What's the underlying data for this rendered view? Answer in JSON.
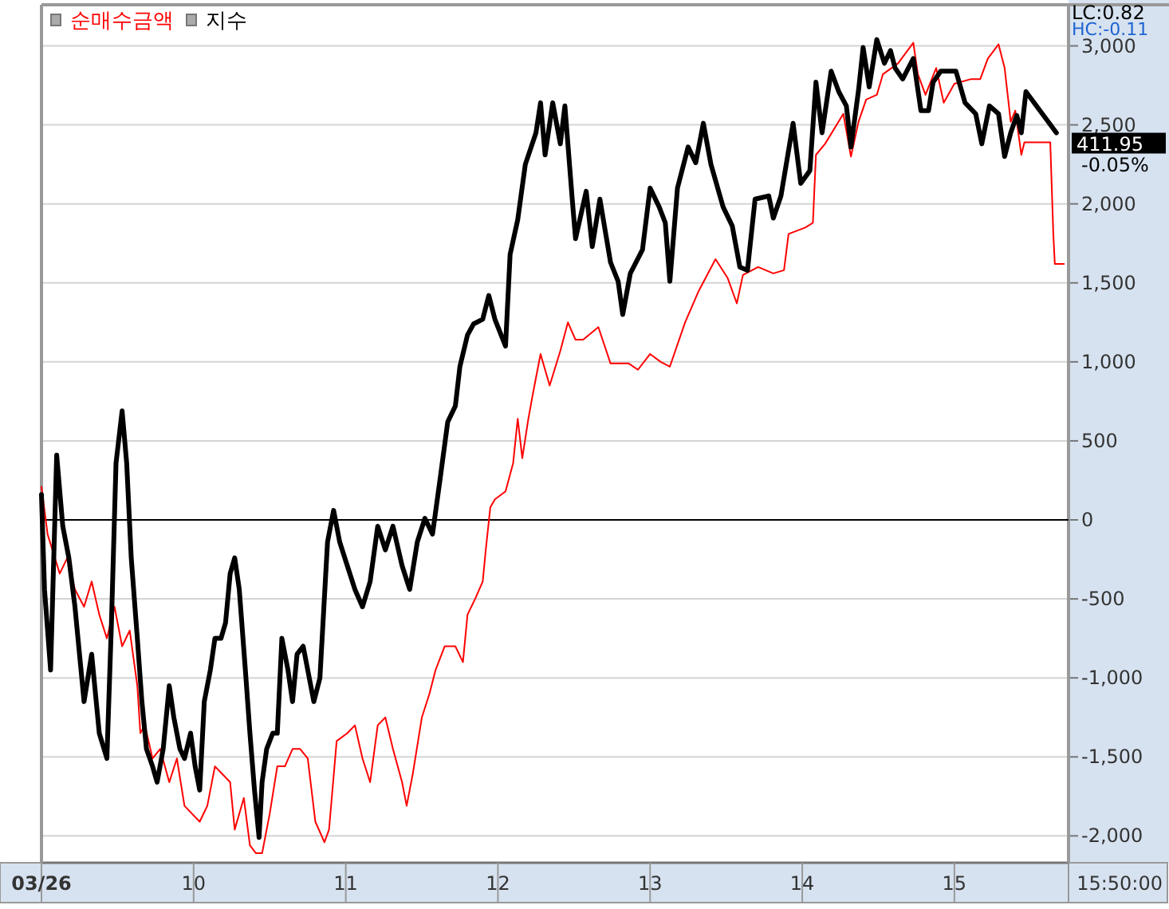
{
  "chart_data": {
    "type": "line",
    "xlim": [
      9,
      15.75
    ],
    "xticks": [
      {
        "value": 9,
        "label": "03/26"
      },
      10,
      11,
      12,
      13,
      14,
      15
    ],
    "ylim": [
      -2170,
      3260
    ],
    "yticks": [
      {
        "value": -2000,
        "label": "-2,000"
      },
      {
        "value": -1500,
        "label": "-1,500"
      },
      {
        "value": -1000,
        "label": "-1,000"
      },
      {
        "value": -500,
        "label": "-500"
      },
      0,
      500,
      {
        "value": 1000,
        "label": "1,000"
      },
      {
        "value": 1500,
        "label": "1,500"
      },
      {
        "value": 2000,
        "label": "2,000"
      },
      {
        "value": 2500,
        "label": "2,500"
      },
      {
        "value": 3000,
        "label": "3,000"
      }
    ],
    "grid": "y",
    "legend": "top left",
    "ref_lines": [
      {
        "axis": "y",
        "value": 0,
        "color": "#000000"
      }
    ],
    "series": [
      {
        "name": "순매수금액",
        "color": "#ff0000",
        "x": [
          9.0,
          9.04,
          9.12,
          9.17,
          9.22,
          9.28,
          9.33,
          9.38,
          9.43,
          9.48,
          9.53,
          9.58,
          9.63,
          9.65,
          9.68,
          9.73,
          9.78,
          9.84,
          9.89,
          9.94,
          9.99,
          10.04,
          10.09,
          10.14,
          10.19,
          10.24,
          10.27,
          10.33,
          10.37,
          10.41,
          10.45,
          10.5,
          10.55,
          10.6,
          10.65,
          10.7,
          10.75,
          10.8,
          10.86,
          10.89,
          10.94,
          11.01,
          11.06,
          11.11,
          11.16,
          11.21,
          11.26,
          11.31,
          11.37,
          11.4,
          11.44,
          11.5,
          11.55,
          11.59,
          11.65,
          11.72,
          11.77,
          11.8,
          11.85,
          11.9,
          11.92,
          11.95,
          11.98,
          12.05,
          12.1,
          12.13,
          12.16,
          12.2,
          12.23,
          12.28,
          12.34,
          12.41,
          12.46,
          12.51,
          12.56,
          12.66,
          12.74,
          12.86,
          12.92,
          13.0,
          13.07,
          13.13,
          13.23,
          13.32,
          13.43,
          13.51,
          13.57,
          13.61,
          13.71,
          13.81,
          13.88,
          13.91,
          14.02,
          14.07,
          14.09,
          14.15,
          14.27,
          14.32,
          14.37,
          14.42,
          14.49,
          14.53,
          14.63,
          14.73,
          14.76,
          14.81,
          14.88,
          14.93,
          15.0,
          15.11,
          15.17,
          15.22,
          15.29,
          15.33,
          15.37,
          15.4,
          15.44,
          15.46,
          15.63,
          15.65,
          15.66,
          15.72
        ],
        "values": [
          210,
          -90,
          -340,
          -240,
          -440,
          -550,
          -390,
          -600,
          -750,
          -550,
          -800,
          -700,
          -1050,
          -1350,
          -1300,
          -1510,
          -1450,
          -1660,
          -1510,
          -1810,
          -1860,
          -1910,
          -1810,
          -1560,
          -1610,
          -1660,
          -1960,
          -1760,
          -2060,
          -2110,
          -2110,
          -1860,
          -1560,
          -1560,
          -1450,
          -1450,
          -1510,
          -1910,
          -2040,
          -1960,
          -1400,
          -1350,
          -1300,
          -1510,
          -1660,
          -1300,
          -1250,
          -1450,
          -1660,
          -1810,
          -1610,
          -1250,
          -1100,
          -950,
          -800,
          -800,
          -900,
          -600,
          -500,
          -390,
          -190,
          80,
          130,
          180,
          360,
          640,
          390,
          640,
          800,
          1050,
          850,
          1070,
          1250,
          1140,
          1140,
          1220,
          990,
          990,
          950,
          1050,
          1000,
          970,
          1250,
          1450,
          1650,
          1530,
          1370,
          1550,
          1600,
          1560,
          1580,
          1810,
          1850,
          1880,
          2310,
          2380,
          2570,
          2300,
          2520,
          2660,
          2690,
          2820,
          2890,
          3020,
          2820,
          2690,
          2860,
          2640,
          2760,
          2790,
          2790,
          2920,
          3010,
          2860,
          2520,
          2590,
          2310,
          2390,
          2390,
          1810,
          1620,
          1620
        ]
      },
      {
        "name": "지수",
        "color": "#000000",
        "x": [
          9.0,
          9.02,
          9.06,
          9.1,
          9.14,
          9.18,
          9.22,
          9.28,
          9.33,
          9.38,
          9.43,
          9.46,
          9.49,
          9.53,
          9.56,
          9.59,
          9.63,
          9.66,
          9.69,
          9.73,
          9.76,
          9.8,
          9.84,
          9.87,
          9.91,
          9.94,
          9.98,
          10.01,
          10.04,
          10.07,
          10.11,
          10.14,
          10.18,
          10.21,
          10.24,
          10.27,
          10.3,
          10.34,
          10.37,
          10.4,
          10.43,
          10.45,
          10.48,
          10.52,
          10.55,
          10.58,
          10.62,
          10.65,
          10.68,
          10.72,
          10.75,
          10.79,
          10.83,
          10.88,
          10.92,
          10.96,
          11.01,
          11.06,
          11.11,
          11.16,
          11.21,
          11.26,
          11.31,
          11.37,
          11.42,
          11.47,
          11.52,
          11.57,
          11.62,
          11.67,
          11.72,
          11.75,
          11.8,
          11.84,
          11.9,
          11.94,
          11.98,
          12.05,
          12.08,
          12.13,
          12.18,
          12.25,
          12.28,
          12.31,
          12.36,
          12.41,
          12.44,
          12.49,
          12.51,
          12.58,
          12.62,
          12.67,
          12.74,
          12.79,
          12.82,
          12.87,
          12.95,
          13.0,
          13.06,
          13.1,
          13.13,
          13.18,
          13.25,
          13.3,
          13.35,
          13.4,
          13.48,
          13.54,
          13.59,
          13.64,
          13.69,
          13.78,
          13.81,
          13.86,
          13.94,
          13.99,
          14.05,
          14.09,
          14.13,
          14.19,
          14.24,
          14.29,
          14.32,
          14.37,
          14.4,
          14.44,
          14.49,
          14.54,
          14.58,
          14.61,
          14.66,
          14.73,
          14.78,
          14.83,
          14.86,
          14.91,
          15.01,
          15.07,
          15.14,
          15.18,
          15.23,
          15.29,
          15.33,
          15.37,
          15.41,
          15.44,
          15.47,
          15.67
        ],
        "values": [
          160,
          -440,
          -950,
          410,
          -40,
          -240,
          -550,
          -1150,
          -850,
          -1350,
          -1510,
          -650,
          360,
          690,
          360,
          -240,
          -750,
          -1150,
          -1450,
          -1560,
          -1660,
          -1450,
          -1050,
          -1250,
          -1450,
          -1510,
          -1350,
          -1560,
          -1710,
          -1150,
          -950,
          -750,
          -750,
          -650,
          -340,
          -240,
          -440,
          -950,
          -1350,
          -1710,
          -2010,
          -1660,
          -1450,
          -1350,
          -1350,
          -750,
          -950,
          -1150,
          -850,
          -800,
          -950,
          -1150,
          -1000,
          -140,
          60,
          -140,
          -290,
          -440,
          -550,
          -390,
          -40,
          -190,
          -40,
          -290,
          -440,
          -140,
          10,
          -90,
          260,
          620,
          720,
          970,
          1170,
          1240,
          1270,
          1420,
          1270,
          1100,
          1680,
          1900,
          2250,
          2450,
          2640,
          2310,
          2640,
          2380,
          2620,
          2010,
          1780,
          2080,
          1730,
          2030,
          1630,
          1510,
          1300,
          1560,
          1710,
          2100,
          1980,
          1880,
          1510,
          2100,
          2360,
          2260,
          2510,
          2250,
          1980,
          1860,
          1600,
          1580,
          2030,
          2050,
          1910,
          2050,
          2510,
          2130,
          2210,
          2770,
          2450,
          2840,
          2710,
          2620,
          2360,
          2720,
          2990,
          2740,
          3040,
          2890,
          2970,
          2860,
          2790,
          2920,
          2590,
          2590,
          2770,
          2840,
          2840,
          2640,
          2570,
          2380,
          2620,
          2570,
          2300,
          2450,
          2560,
          2450,
          2710,
          2450
        ]
      }
    ],
    "annotations": [
      "LC:0.82",
      "HC:-0.11",
      {
        "text": "411.95",
        "x": 15.67,
        "y": 2450
      },
      "-0.05%",
      "15:50:00"
    ]
  }
}
